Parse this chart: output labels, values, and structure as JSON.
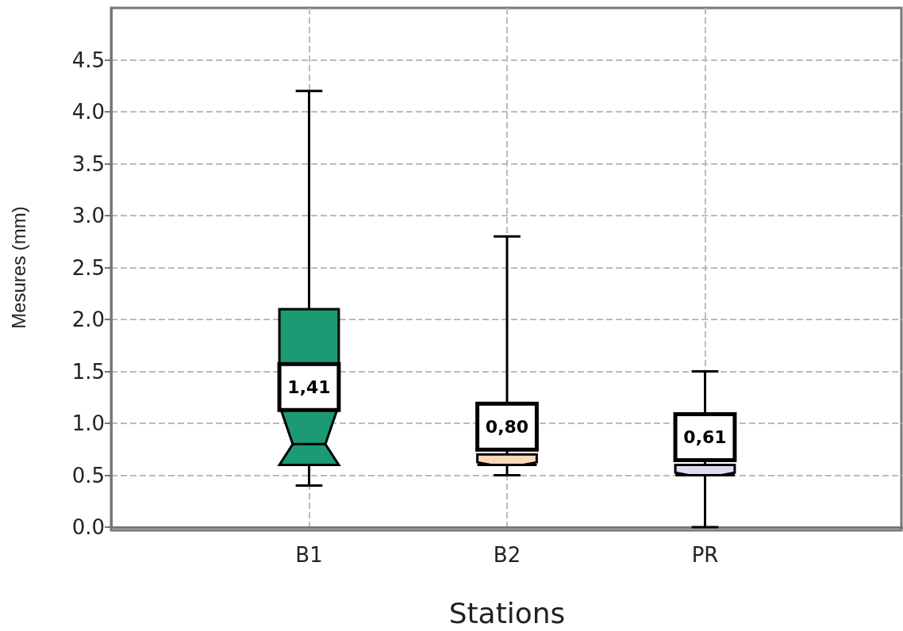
{
  "chart_data": {
    "type": "box",
    "xlabel": "Stations",
    "ylabel": "Mesures (mm)",
    "categories": [
      "B1",
      "B2",
      "PR"
    ],
    "colors": [
      "#1b9a73",
      "#fbd8b8",
      "#dcdcf2"
    ],
    "boxes": [
      {
        "low": 0.4,
        "q1": 0.6,
        "median": 0.8,
        "q3": 2.1,
        "high": 4.2
      },
      {
        "low": 0.5,
        "q1": 0.6,
        "median": 0.6,
        "q3": 0.7,
        "high": 2.8
      },
      {
        "low": 0.0,
        "q1": 0.5,
        "median": 0.5,
        "q3": 0.6,
        "high": 1.5
      }
    ],
    "annotations": [
      "1,41",
      "0,80",
      "0,61"
    ],
    "ylim": [
      0,
      5
    ],
    "yticks": [
      {
        "value": 0,
        "label": "0.0"
      },
      0.5,
      {
        "value": 1,
        "label": "1.0"
      },
      1.5,
      {
        "value": 2,
        "label": "2.0"
      },
      2.5,
      {
        "value": 3,
        "label": "3.0"
      },
      3.5,
      {
        "value": 4,
        "label": "4.0"
      },
      4.5
    ],
    "grid": true
  }
}
